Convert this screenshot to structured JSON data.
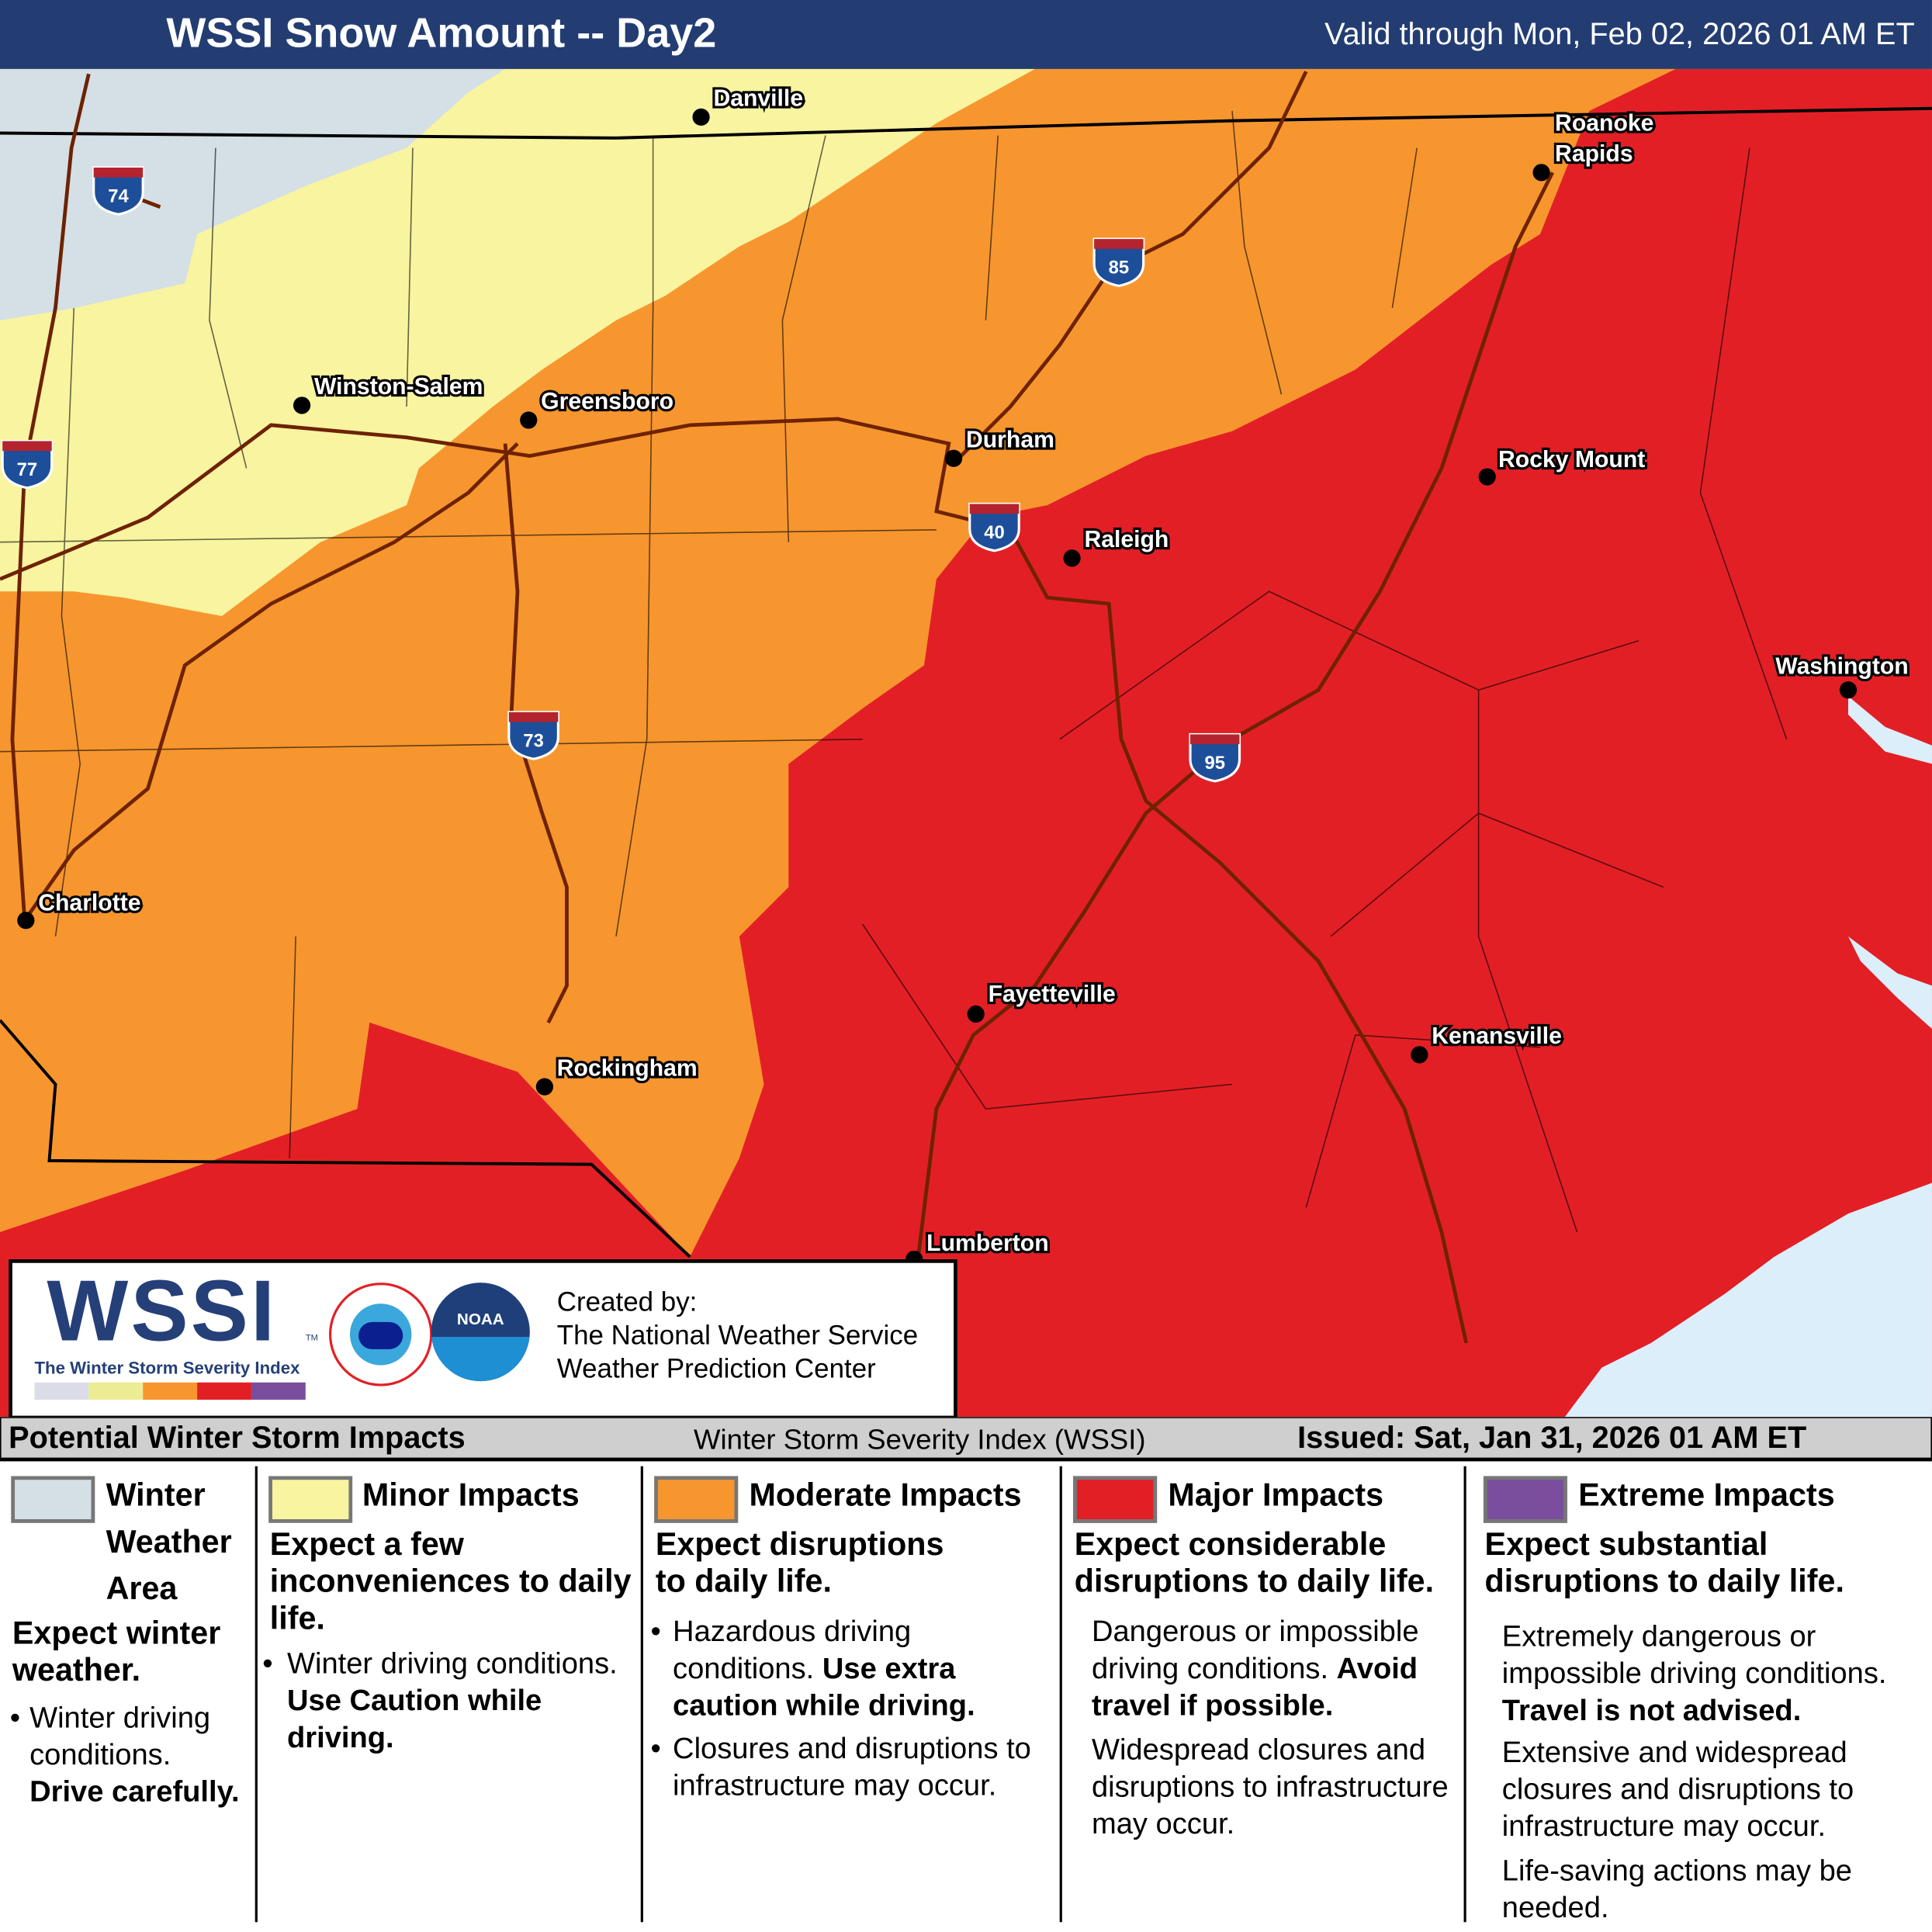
{
  "header": {
    "title": "WSSI Snow Amount -- Day2",
    "valid": "Valid through Mon, Feb 02, 2026 01 AM ET"
  },
  "colors": {
    "winter": "#d4dfe6",
    "minor": "#f8f4a0",
    "moderate": "#f7962f",
    "major": "#e31f26",
    "extreme": "#7a4e9d",
    "ocean": "#dbeefa",
    "header": "#233d73",
    "roads": "#7a2a00"
  },
  "cities": [
    {
      "name": "Danville"
    },
    {
      "name": "Roanoke"
    },
    {
      "name": "Rapids"
    },
    {
      "name": "Winston-Salem"
    },
    {
      "name": "Greensboro"
    },
    {
      "name": "Durham"
    },
    {
      "name": "Rocky Mount"
    },
    {
      "name": "Raleigh"
    },
    {
      "name": "Washington"
    },
    {
      "name": "Charlotte"
    },
    {
      "name": "Fayetteville"
    },
    {
      "name": "Kenansville"
    },
    {
      "name": "Rockingham"
    },
    {
      "name": "Lumberton"
    }
  ],
  "interstates": [
    "74",
    "85",
    "77",
    "40",
    "73",
    "95"
  ],
  "logo": {
    "wssi": "WSSI",
    "tm": "TM",
    "subtitle": "The Winter Storm Severity Index",
    "nws_seal": "NATIONAL WEATHER SERVICE",
    "noaa": "NOAA",
    "created_by": "Created by:",
    "line1": "The National Weather Service",
    "line2": "Weather Prediction Center"
  },
  "legend": {
    "title": "Potential Winter Storm Impacts",
    "center": "Winter Storm Severity Index (WSSI)",
    "issued": "Issued: Sat, Jan 31, 2026 01 AM ET",
    "columns": [
      {
        "title1": "Winter",
        "title2": "Weather",
        "title3": "Area",
        "lead": "Expect winter weather.",
        "b1": "Winter driving conditions.",
        "b1_bold": "Drive carefully."
      },
      {
        "title": "Minor Impacts",
        "lead": "Expect a few inconveniences to daily life.",
        "b1": "Winter driving conditions.",
        "b1_bold": "Use Caution while driving."
      },
      {
        "title": "Moderate Impacts",
        "lead": "Expect disruptions to daily life.",
        "b1": "Hazardous driving conditions.",
        "b1_bold": "Use extra caution while driving.",
        "b2": "Closures and disruptions to infrastructure may occur."
      },
      {
        "title": "Major Impacts",
        "lead": "Expect considerable disruptions to daily life.",
        "p1": "Dangerous or impossible driving conditions.",
        "p1_bold": "Avoid travel if possible.",
        "p2": "Widespread closures and disruptions to infrastructure may occur."
      },
      {
        "title": "Extreme Impacts",
        "lead": "Expect substantial disruptions to daily life.",
        "p1": "Extremely dangerous or impossible driving conditions.",
        "p1_bold": "Travel is not advised.",
        "p2": "Extensive and widespread closures and disruptions to infrastructure may occur.",
        "p3": "Life-saving actions may be needed."
      }
    ]
  }
}
